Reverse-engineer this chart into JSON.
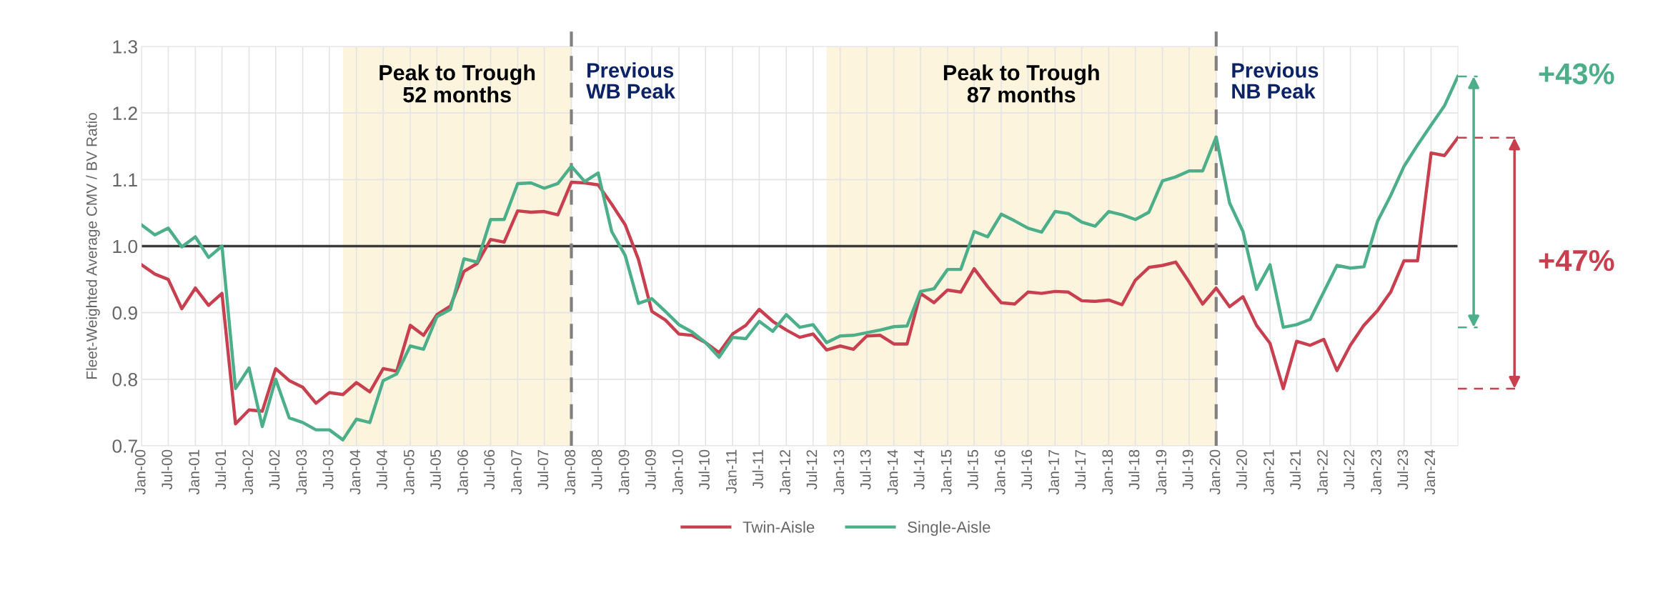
{
  "chart_data": {
    "type": "line",
    "ylabel": "Fleet-Weighted Average CMV / BV Ratio",
    "x": [
      "2000-01",
      "2000-04",
      "2000-07",
      "2000-10",
      "2001-01",
      "2001-04",
      "2001-07",
      "2001-10",
      "2002-01",
      "2002-04",
      "2002-07",
      "2002-10",
      "2003-01",
      "2003-04",
      "2003-07",
      "2003-10",
      "2004-01",
      "2004-04",
      "2004-07",
      "2004-10",
      "2005-01",
      "2005-04",
      "2005-07",
      "2005-10",
      "2006-01",
      "2006-04",
      "2006-07",
      "2006-10",
      "2007-01",
      "2007-04",
      "2007-07",
      "2007-10",
      "2008-01",
      "2008-04",
      "2008-07",
      "2008-10",
      "2009-01",
      "2009-04",
      "2009-07",
      "2009-10",
      "2010-01",
      "2010-04",
      "2010-07",
      "2010-10",
      "2011-01",
      "2011-04",
      "2011-07",
      "2011-10",
      "2012-01",
      "2012-04",
      "2012-07",
      "2012-10",
      "2013-01",
      "2013-04",
      "2013-07",
      "2013-10",
      "2014-01",
      "2014-04",
      "2014-07",
      "2014-10",
      "2015-01",
      "2015-04",
      "2015-07",
      "2015-10",
      "2016-01",
      "2016-04",
      "2016-07",
      "2016-10",
      "2017-01",
      "2017-04",
      "2017-07",
      "2017-10",
      "2018-01",
      "2018-04",
      "2018-07",
      "2018-10",
      "2019-01",
      "2019-04",
      "2019-07",
      "2019-10",
      "2020-01",
      "2020-04",
      "2020-07",
      "2020-10",
      "2021-01",
      "2021-04",
      "2021-07",
      "2021-10",
      "2022-01",
      "2022-04",
      "2022-07",
      "2022-10",
      "2023-01",
      "2023-04",
      "2023-07",
      "2023-10",
      "2024-01",
      "2024-04",
      "2024-07"
    ],
    "series": [
      {
        "name": "Twin-Aisle",
        "color": "#c8404f",
        "values": [
          0.972,
          0.958,
          0.95,
          0.906,
          0.937,
          0.911,
          0.929,
          0.733,
          0.754,
          0.752,
          0.816,
          0.798,
          0.788,
          0.764,
          0.78,
          0.777,
          0.795,
          0.781,
          0.816,
          0.812,
          0.881,
          0.866,
          0.897,
          0.91,
          0.962,
          0.974,
          1.01,
          1.006,
          1.053,
          1.051,
          1.052,
          1.047,
          1.096,
          1.095,
          1.092,
          1.063,
          1.032,
          0.98,
          0.902,
          0.889,
          0.868,
          0.866,
          0.855,
          0.84,
          0.868,
          0.881,
          0.905,
          0.887,
          0.874,
          0.863,
          0.868,
          0.844,
          0.85,
          0.845,
          0.865,
          0.866,
          0.853,
          0.853,
          0.929,
          0.915,
          0.934,
          0.931,
          0.966,
          0.939,
          0.915,
          0.913,
          0.931,
          0.929,
          0.932,
          0.931,
          0.918,
          0.917,
          0.919,
          0.912,
          0.949,
          0.968,
          0.971,
          0.976,
          0.946,
          0.913,
          0.937,
          0.909,
          0.924,
          0.881,
          0.854,
          0.786,
          0.857,
          0.851,
          0.86,
          0.813,
          0.851,
          0.881,
          0.903,
          0.931,
          0.978,
          0.978,
          1.14,
          1.136,
          1.163
        ]
      },
      {
        "name": "Single-Aisle",
        "color": "#4caf8a",
        "values": [
          1.032,
          1.017,
          1.027,
          0.999,
          1.014,
          0.983,
          1.0,
          0.786,
          0.817,
          0.729,
          0.8,
          0.742,
          0.735,
          0.724,
          0.724,
          0.709,
          0.74,
          0.735,
          0.798,
          0.808,
          0.85,
          0.845,
          0.894,
          0.905,
          0.981,
          0.976,
          1.04,
          1.04,
          1.094,
          1.095,
          1.087,
          1.094,
          1.12,
          1.097,
          1.11,
          1.022,
          0.986,
          0.914,
          0.921,
          0.902,
          0.882,
          0.871,
          0.855,
          0.833,
          0.863,
          0.861,
          0.887,
          0.872,
          0.897,
          0.878,
          0.882,
          0.855,
          0.865,
          0.866,
          0.87,
          0.874,
          0.879,
          0.88,
          0.932,
          0.936,
          0.965,
          0.965,
          1.022,
          1.014,
          1.048,
          1.038,
          1.027,
          1.021,
          1.052,
          1.049,
          1.036,
          1.03,
          1.052,
          1.047,
          1.04,
          1.051,
          1.098,
          1.104,
          1.113,
          1.113,
          1.164,
          1.065,
          1.022,
          0.935,
          0.972,
          0.878,
          0.882,
          0.89,
          0.931,
          0.971,
          0.967,
          0.969,
          1.037,
          1.076,
          1.12,
          1.152,
          1.182,
          1.211,
          1.255
        ]
      }
    ],
    "xlim": [
      "2000-01",
      "2024-07"
    ],
    "xticks": [
      {
        "value": "2000-01",
        "label": "Jan-00"
      },
      {
        "value": "2000-07",
        "label": "Jul-00"
      },
      {
        "value": "2001-01",
        "label": "Jan-01"
      },
      {
        "value": "2001-07",
        "label": "Jul-01"
      },
      {
        "value": "2002-01",
        "label": "Jan-02"
      },
      {
        "value": "2002-07",
        "label": "Jul-02"
      },
      {
        "value": "2003-01",
        "label": "Jan-03"
      },
      {
        "value": "2003-07",
        "label": "Jul-03"
      },
      {
        "value": "2004-01",
        "label": "Jan-04"
      },
      {
        "value": "2004-07",
        "label": "Jul-04"
      },
      {
        "value": "2005-01",
        "label": "Jan-05"
      },
      {
        "value": "2005-07",
        "label": "Jul-05"
      },
      {
        "value": "2006-01",
        "label": "Jan-06"
      },
      {
        "value": "2006-07",
        "label": "Jul-06"
      },
      {
        "value": "2007-01",
        "label": "Jan-07"
      },
      {
        "value": "2007-07",
        "label": "Jul-07"
      },
      {
        "value": "2008-01",
        "label": "Jan-08"
      },
      {
        "value": "2008-07",
        "label": "Jul-08"
      },
      {
        "value": "2009-01",
        "label": "Jan-09"
      },
      {
        "value": "2009-07",
        "label": "Jul-09"
      },
      {
        "value": "2010-01",
        "label": "Jan-10"
      },
      {
        "value": "2010-07",
        "label": "Jul-10"
      },
      {
        "value": "2011-01",
        "label": "Jan-11"
      },
      {
        "value": "2011-07",
        "label": "Jul-11"
      },
      {
        "value": "2012-01",
        "label": "Jan-12"
      },
      {
        "value": "2012-07",
        "label": "Jul-12"
      },
      {
        "value": "2013-01",
        "label": "Jan-13"
      },
      {
        "value": "2013-07",
        "label": "Jul-13"
      },
      {
        "value": "2014-01",
        "label": "Jan-14"
      },
      {
        "value": "2014-07",
        "label": "Jul-14"
      },
      {
        "value": "2015-01",
        "label": "Jan-15"
      },
      {
        "value": "2015-07",
        "label": "Jul-15"
      },
      {
        "value": "2016-01",
        "label": "Jan-16"
      },
      {
        "value": "2016-07",
        "label": "Jul-16"
      },
      {
        "value": "2017-01",
        "label": "Jan-17"
      },
      {
        "value": "2017-07",
        "label": "Jul-17"
      },
      {
        "value": "2018-01",
        "label": "Jan-18"
      },
      {
        "value": "2018-07",
        "label": "Jul-18"
      },
      {
        "value": "2019-01",
        "label": "Jan-19"
      },
      {
        "value": "2019-07",
        "label": "Jul-19"
      },
      {
        "value": "2020-01",
        "label": "Jan-20"
      },
      {
        "value": "2020-07",
        "label": "Jul-20"
      },
      {
        "value": "2021-01",
        "label": "Jan-21"
      },
      {
        "value": "2021-07",
        "label": "Jul-21"
      },
      {
        "value": "2022-01",
        "label": "Jan-22"
      },
      {
        "value": "2022-07",
        "label": "Jul-22"
      },
      {
        "value": "2023-01",
        "label": "Jan-23"
      },
      {
        "value": "2023-07",
        "label": "Jul-23"
      },
      {
        "value": "2024-01",
        "label": "Jan-24"
      }
    ],
    "ylim": [
      0.7,
      1.3
    ],
    "yticks": [
      0.7,
      0.8,
      0.9,
      {
        "value": 1.0,
        "label": "1.0"
      },
      1.1,
      1.2,
      1.3
    ],
    "bands": [
      {
        "axis": "x",
        "from": "2003-10",
        "to": "2008-01",
        "label": "Peak to Trough\n52 months",
        "color": "#fdf4dd"
      },
      {
        "axis": "x",
        "from": "2012-10",
        "to": "2020-01",
        "label": "Peak to Trough\n87 months",
        "color": "#fdf4dd"
      }
    ],
    "ref_lines": [
      {
        "axis": "y",
        "value": 1.0,
        "color": "#3a3a3a",
        "line_style": "solid"
      },
      {
        "axis": "x",
        "value": "2008-01",
        "label": "Previous\nWB Peak",
        "color": "#808080",
        "line_style": "dashed"
      },
      {
        "axis": "x",
        "value": "2020-01",
        "label": "Previous\nNB Peak",
        "color": "#808080",
        "line_style": "dashed"
      }
    ],
    "annotations": [
      "+47%",
      "+43%"
    ],
    "grid": true,
    "legend": "bottom",
    "marker": "none",
    "line_style": "solid"
  }
}
